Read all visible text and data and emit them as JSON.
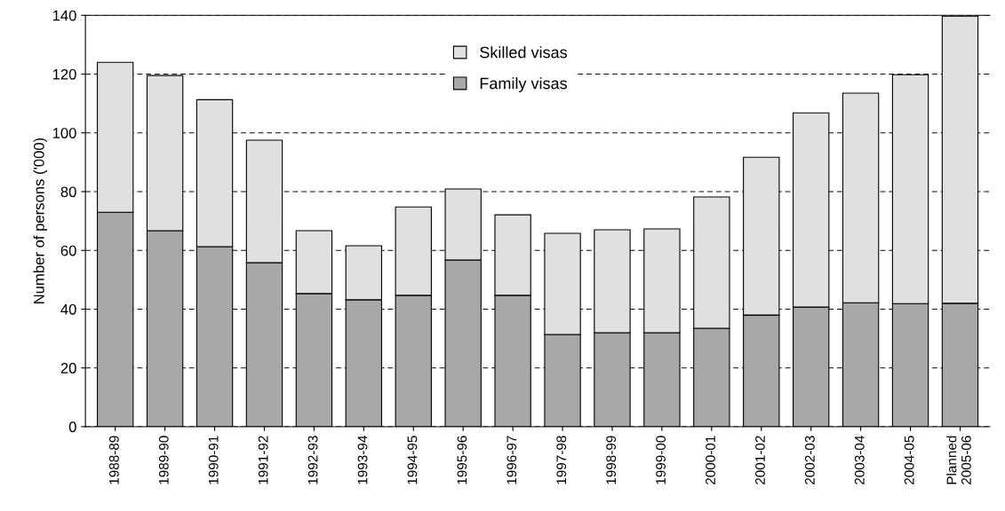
{
  "chart_data": {
    "type": "bar",
    "stacked": true,
    "ylabel": "Number of persons ('000)",
    "categories": [
      "1988-89",
      "1989-90",
      "1990-91",
      "1991-92",
      "1992-93",
      "1993-94",
      "1994-95",
      "1995-96",
      "1996-97",
      "1997-98",
      "1998-99",
      "1999-00",
      "2000-01",
      "2001-02",
      "2002-03",
      "2003-04",
      "2004-05",
      "Planned\n2005-06"
    ],
    "series": [
      {
        "name": "Family visas",
        "color": "#a8a8a8",
        "values": [
          73,
          66.7,
          61.3,
          55.8,
          45.3,
          43.2,
          44.7,
          56.7,
          44.7,
          31.4,
          32,
          32,
          33.5,
          38,
          40.7,
          42.2,
          41.9,
          42
        ]
      },
      {
        "name": "Skilled visas",
        "color": "#e0e0e0",
        "values": [
          51,
          52.8,
          50,
          41.7,
          21.4,
          18.4,
          30.1,
          24.2,
          27.4,
          34.4,
          35,
          35.3,
          44.7,
          53.7,
          66.1,
          71.3,
          77.9,
          97.7
        ]
      }
    ],
    "ylim": [
      0,
      140
    ],
    "yticks": [
      0,
      20,
      40,
      60,
      80,
      100,
      120,
      140
    ],
    "grid": "y",
    "legend": "top"
  }
}
